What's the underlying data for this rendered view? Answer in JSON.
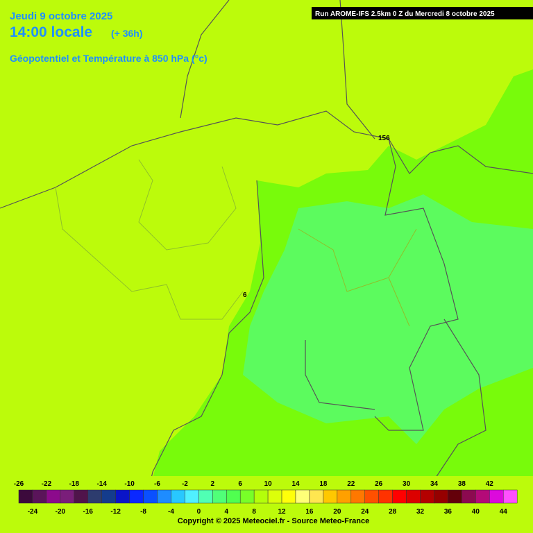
{
  "header": {
    "date": "Jeudi 9 octobre 2025",
    "time": "14:00 locale",
    "lead": "(+ 36h)",
    "subtitle": "Géopotentiel et Température à 850 hPa (°c)",
    "run": "Run AROME-IFS 2.5km 0 Z du Mercredi 8 octobre 2025"
  },
  "map": {
    "labels": [
      "156",
      "6"
    ]
  },
  "legend": {
    "top_labels": [
      -26,
      -22,
      -18,
      -14,
      -10,
      -6,
      -2,
      2,
      6,
      10,
      14,
      18,
      22,
      26,
      30,
      34,
      38,
      42
    ],
    "bottom_labels": [
      -24,
      -20,
      -16,
      -12,
      -8,
      -4,
      0,
      4,
      8,
      12,
      16,
      20,
      24,
      28,
      32,
      36,
      40,
      44
    ],
    "colors": [
      "#3c0a3c",
      "#5a145a",
      "#8c0a8c",
      "#7a1e7a",
      "#50144b",
      "#2d3c6e",
      "#143c8c",
      "#0a14c8",
      "#0a28ff",
      "#0a50ff",
      "#1e8cff",
      "#28c8ff",
      "#50f0ff",
      "#50ffb4",
      "#50ff78",
      "#50ff50",
      "#78ff28",
      "#b4ff0a",
      "#dcff0a",
      "#ffff0a",
      "#ffff78",
      "#ffe650",
      "#ffc800",
      "#ffa000",
      "#ff7800",
      "#ff5000",
      "#ff3200",
      "#ff0000",
      "#dc0000",
      "#b40000",
      "#960000",
      "#64000a",
      "#8c0a50",
      "#b40a78",
      "#dc0adc",
      "#ff50ff"
    ]
  },
  "copyright": "Copyright © 2025 Meteociel.fr - Source Meteo-France"
}
